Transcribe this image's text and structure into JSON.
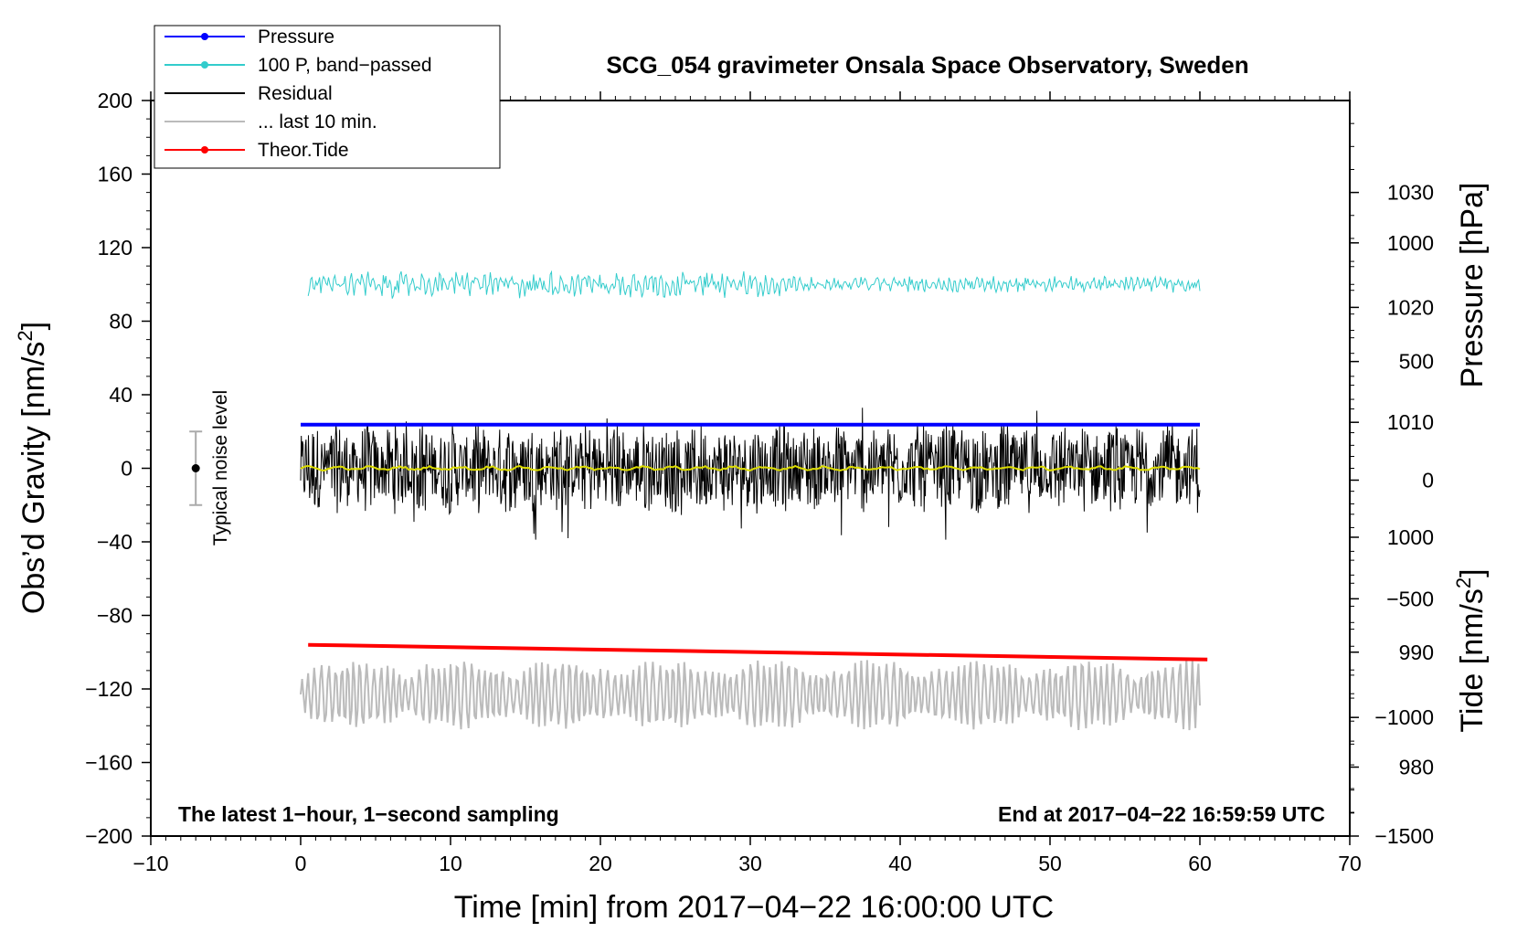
{
  "chart_data": {
    "type": "line",
    "title": "SCG_054 gravimeter Onsala Space Observatory, Sweden",
    "xlabel": "Time [min] from 2017−04−22 16:00:00 UTC",
    "ylabel": "Obs’d Gravity [nm/s",
    "ylabel_sup": "2",
    "ylabel_close": "]",
    "y2label": "Pressure [hPa]",
    "y3label": "Tide [nm/s",
    "y3label_sup": "2",
    "y3label_close": "]",
    "xlim": [
      -10,
      70
    ],
    "ylim": [
      -200,
      200
    ],
    "x_ticks": [
      "−10",
      "0",
      "10",
      "20",
      "30",
      "40",
      "50",
      "60",
      "70"
    ],
    "y_ticks": [
      "200",
      "160",
      "120",
      "80",
      "40",
      "0",
      "−40",
      "−80",
      "−120",
      "−160",
      "−200"
    ],
    "pressure_ticks": [
      "1030",
      "1020",
      "1010",
      "1000",
      "990",
      "980"
    ],
    "pressure_range": [
      974,
      1038
    ],
    "tide_ticks": [
      "1000",
      "500",
      "0",
      "−500",
      "−1000",
      "−1500"
    ],
    "tide_range": [
      -1500,
      1600
    ],
    "annotation_left": "The latest 1−hour, 1−second sampling",
    "annotation_right": "End at 2017−04−22 16:59:59 UTC",
    "noise_label": "Typical noise level",
    "noise_level": {
      "x": -7,
      "center": 0,
      "half_range": 20
    },
    "legend": [
      {
        "label": "Pressure",
        "color": "#0000ff",
        "marker": true
      },
      {
        "label": "100 P, band−passed",
        "color": "#33cccc",
        "marker": true
      },
      {
        "label": "Residual",
        "color": "#000000",
        "marker": false
      },
      {
        "label": "... last 10 min.",
        "color": "#bbbbbb",
        "marker": false
      },
      {
        "label": "Theor.Tide",
        "color": "#ff0000",
        "marker": true
      }
    ],
    "series": [
      {
        "name": "Pressure",
        "color": "#0000ff",
        "x_range": [
          0,
          60
        ],
        "start": 1009.8,
        "end": 1009.8,
        "axis": "pressure"
      },
      {
        "name": "100 P, band−passed",
        "color": "#33cccc",
        "x_range": [
          0.5,
          60
        ],
        "center": 100,
        "amplitude": 7,
        "axis": "gravity"
      },
      {
        "name": "Residual",
        "color": "#000000",
        "x_range": [
          0,
          60
        ],
        "center": 0,
        "amplitude": 25,
        "axis": "gravity"
      },
      {
        "name": "Residual smoothed",
        "color": "#dddd00",
        "x_range": [
          0,
          60
        ],
        "center": 0,
        "amplitude": 1,
        "axis": "gravity"
      },
      {
        "name": "... last 10 min.",
        "color": "#bbbbbb",
        "x_range": [
          0,
          60
        ],
        "center": -123,
        "amplitude": 15,
        "axis": "gravity"
      },
      {
        "name": "Theor.Tide",
        "color": "#ff0000",
        "x_range": [
          0.5,
          60.5
        ],
        "start": -96,
        "end": -104,
        "axis": "gravity"
      }
    ]
  }
}
